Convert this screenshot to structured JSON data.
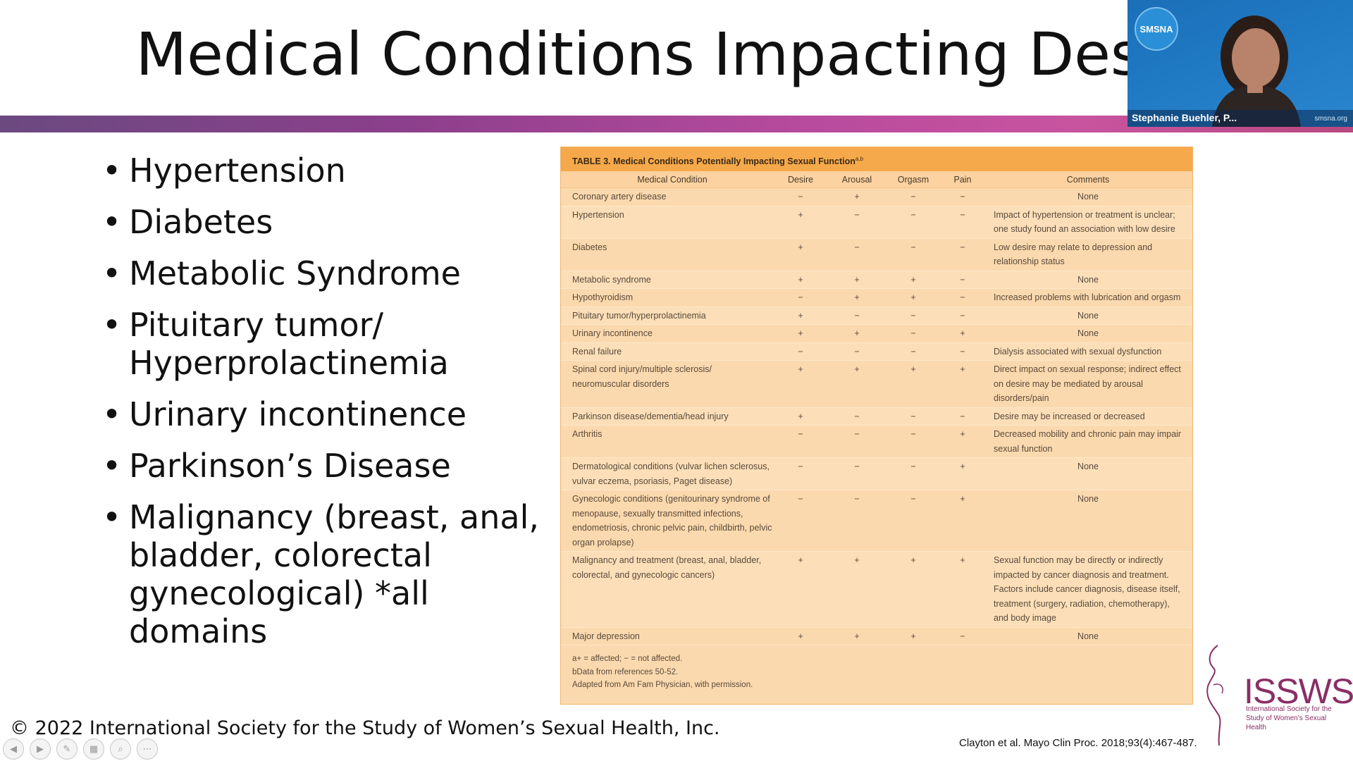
{
  "slide": {
    "title": "Medical Conditions Impacting Desire",
    "bullets": [
      "Hypertension",
      "Diabetes",
      "Metabolic Syndrome",
      "Pituitary tumor/ Hyperprolactinemia",
      "Urinary incontinence",
      "Parkinson’s Disease",
      "Malignancy (breast, anal, bladder, colorectal gynecological) *all domains"
    ],
    "copyright": "© 2022 International Society for the Study of Women’s Sexual Health, Inc.",
    "citation": "Clayton et al. Mayo Clin Proc. 2018;93(4):467-487.",
    "logo_text": "ISSWSH",
    "logo_sub": "International Society for the Study of Women’s Sexual Health"
  },
  "table": {
    "caption": "TABLE 3.  Medical Conditions Potentially Impacting Sexual Function",
    "caption_sup": "a,b",
    "headers": [
      "Medical Condition",
      "Desire",
      "Arousal",
      "Orgasm",
      "Pain",
      "Comments"
    ],
    "rows": [
      {
        "condition": "Coronary artery disease",
        "desire": "−",
        "arousal": "+",
        "orgasm": "−",
        "pain": "−",
        "comment": "None",
        "center": true
      },
      {
        "condition": "Hypertension",
        "desire": "+",
        "arousal": "−",
        "orgasm": "−",
        "pain": "−",
        "comment": "Impact of hypertension or treatment is unclear; one study found an association with low desire",
        "center": false
      },
      {
        "condition": "Diabetes",
        "desire": "+",
        "arousal": "−",
        "orgasm": "−",
        "pain": "−",
        "comment": "Low desire may relate to depression and relationship status",
        "center": false
      },
      {
        "condition": "Metabolic syndrome",
        "desire": "+",
        "arousal": "+",
        "orgasm": "+",
        "pain": "−",
        "comment": "None",
        "center": true
      },
      {
        "condition": "Hypothyroidism",
        "desire": "−",
        "arousal": "+",
        "orgasm": "+",
        "pain": "−",
        "comment": "Increased problems with lubrication and orgasm",
        "center": false
      },
      {
        "condition": "Pituitary tumor/hyperprolactinemia",
        "desire": "+",
        "arousal": "−",
        "orgasm": "−",
        "pain": "−",
        "comment": "None",
        "center": true
      },
      {
        "condition": "Urinary incontinence",
        "desire": "+",
        "arousal": "+",
        "orgasm": "−",
        "pain": "+",
        "comment": "None",
        "center": true
      },
      {
        "condition": "Renal failure",
        "desire": "−",
        "arousal": "−",
        "orgasm": "−",
        "pain": "−",
        "comment": "Dialysis associated with sexual dysfunction",
        "center": false
      },
      {
        "condition": "Spinal cord injury/multiple sclerosis/ neuromuscular disorders",
        "desire": "+",
        "arousal": "+",
        "orgasm": "+",
        "pain": "+",
        "comment": "Direct impact on sexual response; indirect effect on desire may be mediated by arousal disorders/pain",
        "center": false
      },
      {
        "condition": "Parkinson disease/dementia/head injury",
        "desire": "+",
        "arousal": "−",
        "orgasm": "−",
        "pain": "−",
        "comment": "Desire may be increased or decreased",
        "center": false
      },
      {
        "condition": "Arthritis",
        "desire": "−",
        "arousal": "−",
        "orgasm": "−",
        "pain": "+",
        "comment": "Decreased mobility and chronic pain may impair sexual function",
        "center": false
      },
      {
        "condition": "Dermatological conditions (vulvar lichen sclerosus, vulvar eczema, psoriasis, Paget disease)",
        "desire": "−",
        "arousal": "−",
        "orgasm": "−",
        "pain": "+",
        "comment": "None",
        "center": true
      },
      {
        "condition": "Gynecologic conditions (genitourinary syndrome of menopause, sexually transmitted infections, endometriosis, chronic pelvic pain, childbirth, pelvic organ prolapse)",
        "desire": "−",
        "arousal": "−",
        "orgasm": "−",
        "pain": "+",
        "comment": "None",
        "center": true
      },
      {
        "condition": "Malignancy and treatment (breast, anal, bladder, colorectal, and gynecologic cancers)",
        "desire": "+",
        "arousal": "+",
        "orgasm": "+",
        "pain": "+",
        "comment": "Sexual function may be directly or indirectly impacted by cancer diagnosis and treatment. Factors include cancer diagnosis, disease itself, treatment (surgery, radiation, chemotherapy), and body image",
        "center": false
      },
      {
        "condition": "Major depression",
        "desire": "+",
        "arousal": "+",
        "orgasm": "+",
        "pain": "−",
        "comment": "None",
        "center": true
      }
    ],
    "footnotes": [
      "a+ = affected; − = not affected.",
      "bData from references 50-52.",
      "Adapted from Am Fam Physician, with permission."
    ]
  },
  "video": {
    "participant_name": "Stephanie Buehler, P...",
    "badge_text": "SMSNA",
    "site_text": "smsna.org"
  },
  "controls": [
    "prev-icon",
    "play-icon",
    "pen-icon",
    "slides-icon",
    "zoom-icon",
    "more-icon"
  ]
}
